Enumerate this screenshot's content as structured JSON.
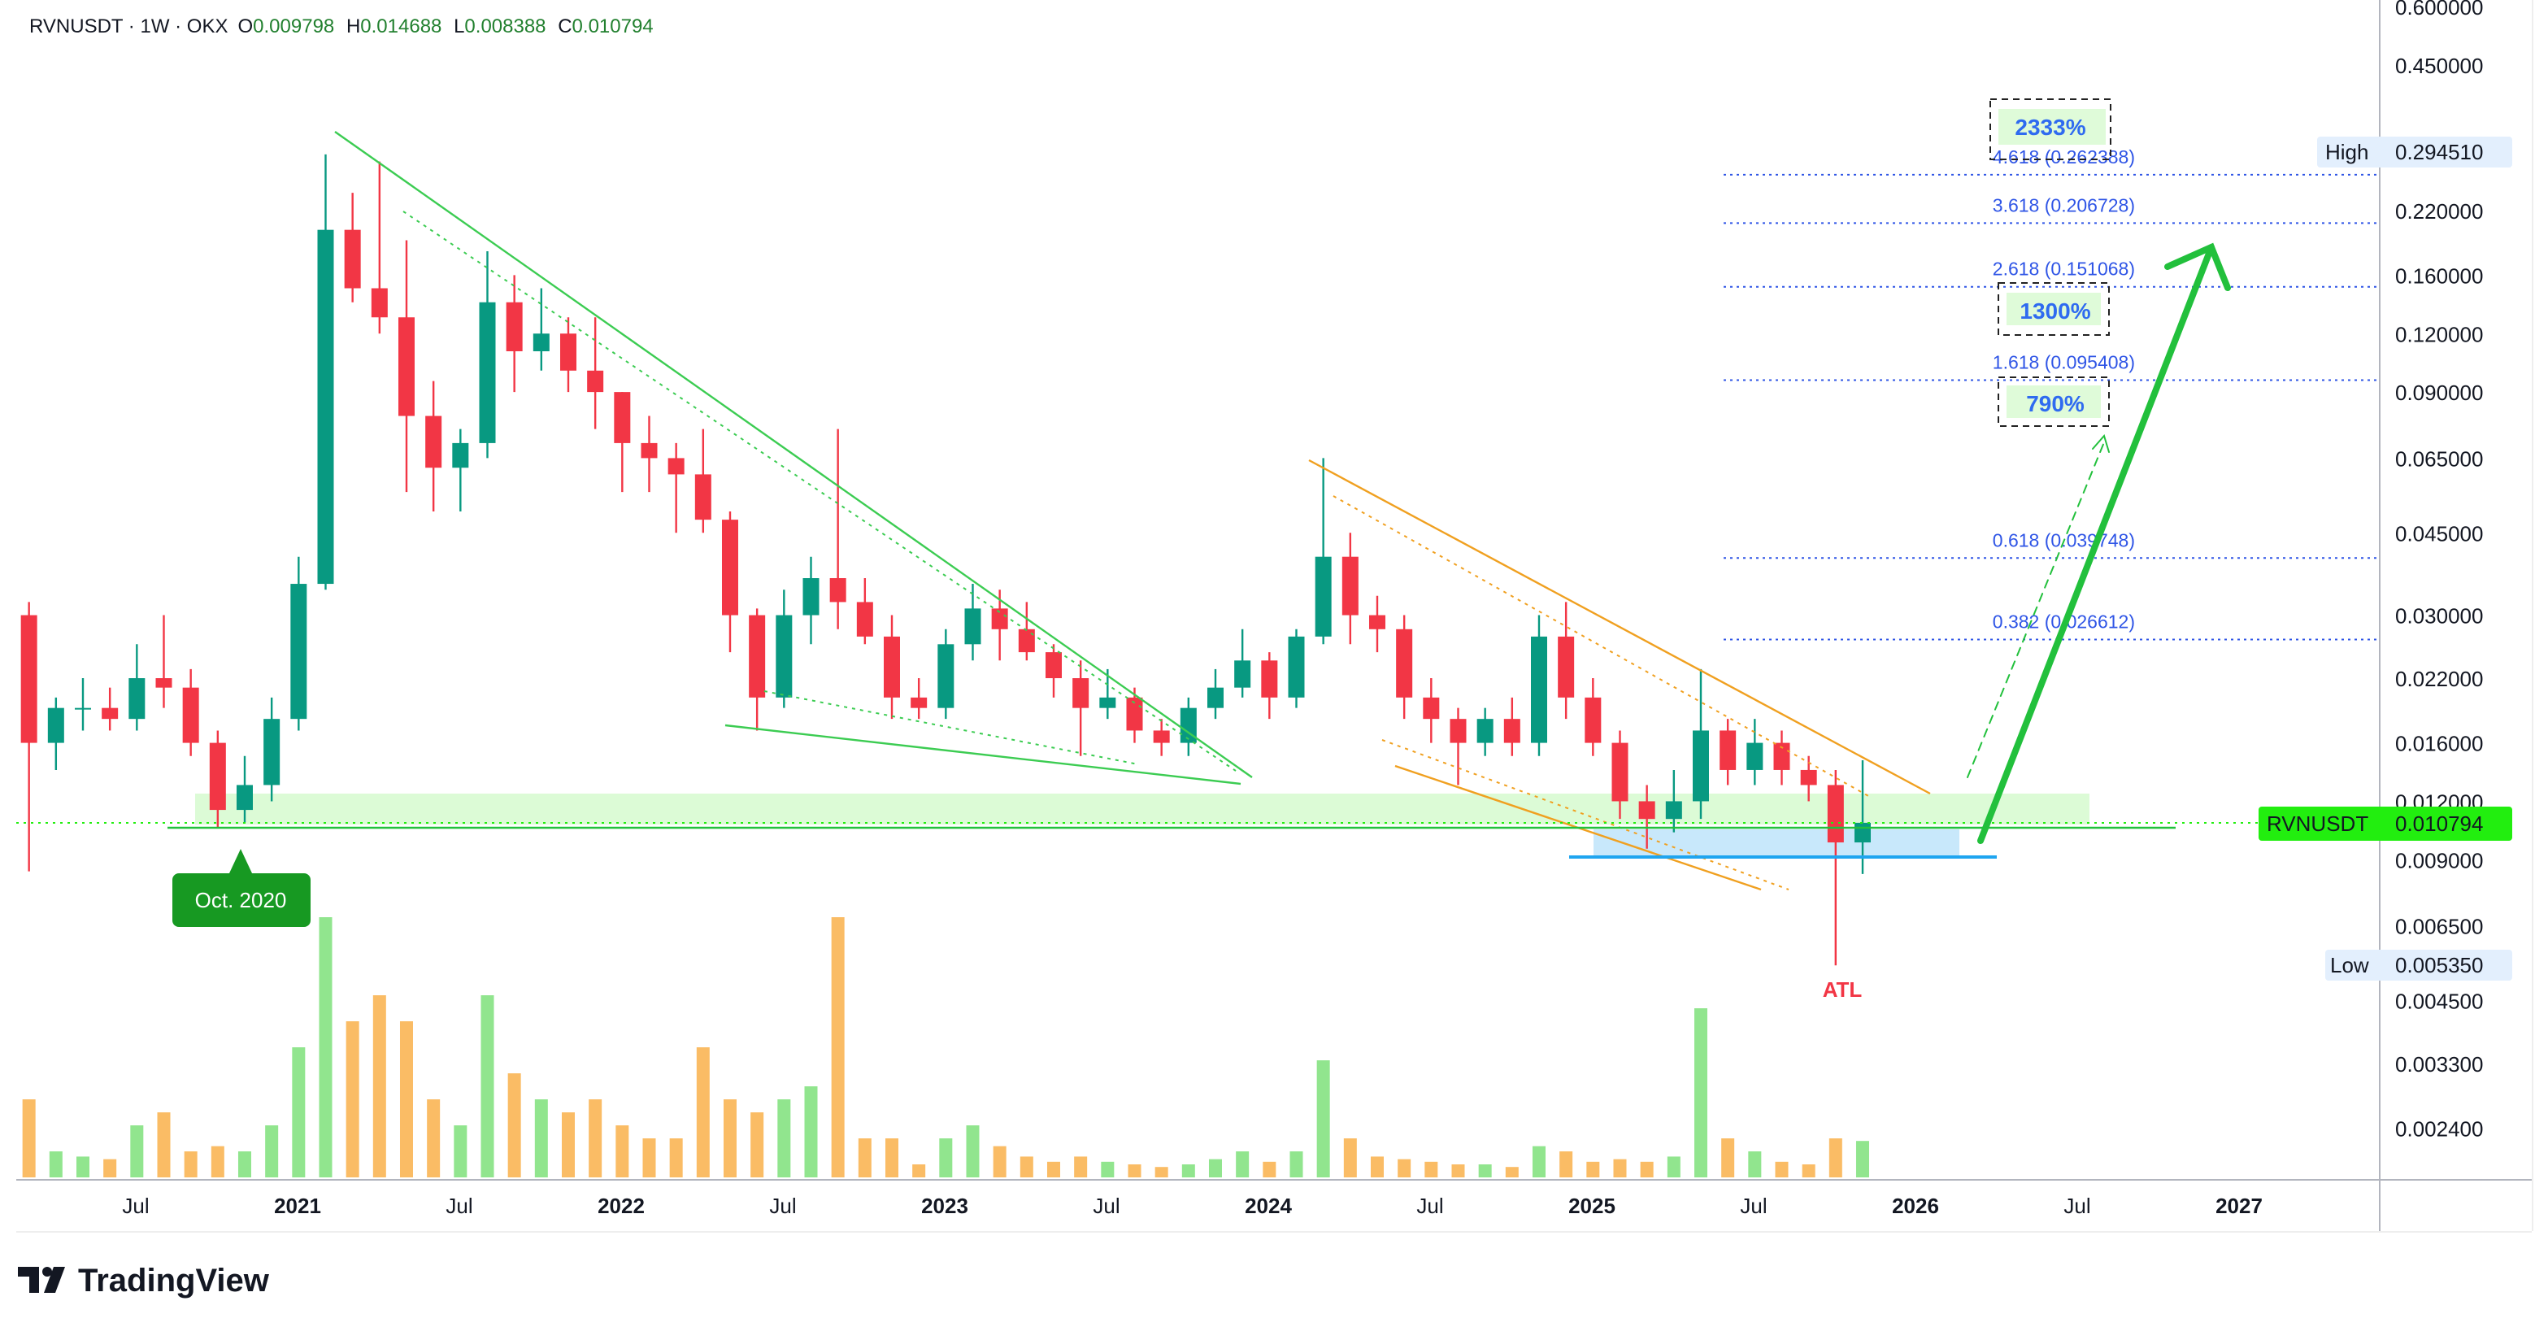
{
  "header": {
    "symbol": "RVNUSDT · 1W · OKX",
    "o_label": "O",
    "o": "0.009798",
    "h_label": "H",
    "h": "0.014688",
    "l_label": "L",
    "l": "0.008388",
    "c_label": "C",
    "c": "0.010794"
  },
  "colors": {
    "up": "#089981",
    "down": "#f23645",
    "vol_up": "#7ee07a",
    "vol_down": "#f9b04a",
    "fib": "#2f55e6",
    "arrow": "#22c03c",
    "badge": "#22ee0f"
  },
  "chart_data": {
    "type": "candlestick",
    "title": "RVNUSDT · 1W · OKX",
    "yscale": "log",
    "ylim": [
      0.0017,
      0.62
    ],
    "price_ticks": [
      "0.600000",
      "0.450000",
      "0.220000",
      "0.160000",
      "0.120000",
      "0.090000",
      "0.065000",
      "0.045000",
      "0.030000",
      "0.022000",
      "0.016000",
      "0.012000",
      "0.009000",
      "0.006500",
      "0.004500",
      "0.003300",
      "0.002400"
    ],
    "time_ticks": [
      {
        "label": "Jul",
        "t": 2020.5,
        "bold": false
      },
      {
        "label": "2021",
        "t": 2021,
        "bold": true
      },
      {
        "label": "Jul",
        "t": 2021.5,
        "bold": false
      },
      {
        "label": "2022",
        "t": 2022,
        "bold": true
      },
      {
        "label": "Jul",
        "t": 2022.5,
        "bold": false
      },
      {
        "label": "2023",
        "t": 2023,
        "bold": true
      },
      {
        "label": "Jul",
        "t": 2023.5,
        "bold": false
      },
      {
        "label": "2024",
        "t": 2024,
        "bold": true
      },
      {
        "label": "Jul",
        "t": 2024.5,
        "bold": false
      },
      {
        "label": "2025",
        "t": 2025,
        "bold": true
      },
      {
        "label": "Jul",
        "t": 2025.5,
        "bold": false
      },
      {
        "label": "2026",
        "t": 2026,
        "bold": true
      },
      {
        "label": "Jul",
        "t": 2026.5,
        "bold": false
      },
      {
        "label": "2027",
        "t": 2027,
        "bold": true
      }
    ],
    "candles_start": 2020.17,
    "candles": [
      [
        0.03,
        0.032,
        0.0085,
        0.016,
        0.3
      ],
      [
        0.016,
        0.02,
        0.014,
        0.019,
        0.1
      ],
      [
        0.019,
        0.022,
        0.017,
        0.019,
        0.08
      ],
      [
        0.019,
        0.021,
        0.017,
        0.018,
        0.07
      ],
      [
        0.018,
        0.026,
        0.017,
        0.022,
        0.2
      ],
      [
        0.022,
        0.03,
        0.019,
        0.021,
        0.25
      ],
      [
        0.021,
        0.023,
        0.015,
        0.016,
        0.1
      ],
      [
        0.016,
        0.017,
        0.0105,
        0.0115,
        0.12
      ],
      [
        0.0115,
        0.015,
        0.0108,
        0.013,
        0.1
      ],
      [
        0.013,
        0.02,
        0.012,
        0.018,
        0.2
      ],
      [
        0.018,
        0.04,
        0.017,
        0.035,
        0.5
      ],
      [
        0.035,
        0.29,
        0.034,
        0.2,
        1.0
      ],
      [
        0.2,
        0.24,
        0.14,
        0.15,
        0.6
      ],
      [
        0.15,
        0.28,
        0.12,
        0.13,
        0.7
      ],
      [
        0.13,
        0.19,
        0.055,
        0.08,
        0.6
      ],
      [
        0.08,
        0.095,
        0.05,
        0.062,
        0.3
      ],
      [
        0.062,
        0.075,
        0.05,
        0.07,
        0.2
      ],
      [
        0.07,
        0.18,
        0.065,
        0.14,
        0.7
      ],
      [
        0.14,
        0.16,
        0.09,
        0.11,
        0.4
      ],
      [
        0.11,
        0.15,
        0.1,
        0.12,
        0.3
      ],
      [
        0.12,
        0.13,
        0.09,
        0.1,
        0.25
      ],
      [
        0.1,
        0.13,
        0.075,
        0.09,
        0.3
      ],
      [
        0.09,
        0.09,
        0.055,
        0.07,
        0.2
      ],
      [
        0.07,
        0.08,
        0.055,
        0.065,
        0.15
      ],
      [
        0.065,
        0.07,
        0.045,
        0.06,
        0.15
      ],
      [
        0.06,
        0.075,
        0.045,
        0.048,
        0.5
      ],
      [
        0.048,
        0.05,
        0.025,
        0.03,
        0.3
      ],
      [
        0.03,
        0.031,
        0.017,
        0.02,
        0.25
      ],
      [
        0.02,
        0.034,
        0.019,
        0.03,
        0.3
      ],
      [
        0.03,
        0.04,
        0.026,
        0.036,
        0.35
      ],
      [
        0.036,
        0.075,
        0.028,
        0.032,
        1.0
      ],
      [
        0.032,
        0.036,
        0.026,
        0.027,
        0.15
      ],
      [
        0.027,
        0.03,
        0.018,
        0.02,
        0.15
      ],
      [
        0.02,
        0.022,
        0.018,
        0.019,
        0.05
      ],
      [
        0.019,
        0.028,
        0.018,
        0.026,
        0.15
      ],
      [
        0.026,
        0.035,
        0.024,
        0.031,
        0.2
      ],
      [
        0.031,
        0.034,
        0.024,
        0.028,
        0.12
      ],
      [
        0.028,
        0.032,
        0.024,
        0.025,
        0.08
      ],
      [
        0.025,
        0.026,
        0.02,
        0.022,
        0.06
      ],
      [
        0.022,
        0.024,
        0.015,
        0.019,
        0.08
      ],
      [
        0.019,
        0.023,
        0.018,
        0.02,
        0.06
      ],
      [
        0.02,
        0.021,
        0.016,
        0.017,
        0.05
      ],
      [
        0.017,
        0.018,
        0.015,
        0.016,
        0.04
      ],
      [
        0.016,
        0.02,
        0.015,
        0.019,
        0.05
      ],
      [
        0.019,
        0.023,
        0.018,
        0.021,
        0.07
      ],
      [
        0.021,
        0.028,
        0.02,
        0.024,
        0.1
      ],
      [
        0.024,
        0.025,
        0.018,
        0.02,
        0.06
      ],
      [
        0.02,
        0.028,
        0.019,
        0.027,
        0.1
      ],
      [
        0.027,
        0.065,
        0.026,
        0.04,
        0.45
      ],
      [
        0.04,
        0.045,
        0.026,
        0.03,
        0.15
      ],
      [
        0.03,
        0.033,
        0.025,
        0.028,
        0.08
      ],
      [
        0.028,
        0.03,
        0.018,
        0.02,
        0.07
      ],
      [
        0.02,
        0.022,
        0.016,
        0.018,
        0.06
      ],
      [
        0.018,
        0.019,
        0.013,
        0.016,
        0.05
      ],
      [
        0.016,
        0.019,
        0.015,
        0.018,
        0.05
      ],
      [
        0.018,
        0.02,
        0.015,
        0.016,
        0.04
      ],
      [
        0.016,
        0.03,
        0.015,
        0.027,
        0.12
      ],
      [
        0.027,
        0.032,
        0.018,
        0.02,
        0.1
      ],
      [
        0.02,
        0.022,
        0.015,
        0.016,
        0.06
      ],
      [
        0.016,
        0.017,
        0.011,
        0.012,
        0.07
      ],
      [
        0.012,
        0.013,
        0.0095,
        0.011,
        0.06
      ],
      [
        0.011,
        0.014,
        0.0103,
        0.012,
        0.08
      ],
      [
        0.012,
        0.023,
        0.011,
        0.017,
        0.65
      ],
      [
        0.017,
        0.018,
        0.013,
        0.014,
        0.15
      ],
      [
        0.014,
        0.018,
        0.013,
        0.016,
        0.1
      ],
      [
        0.016,
        0.017,
        0.013,
        0.014,
        0.06
      ],
      [
        0.014,
        0.015,
        0.012,
        0.013,
        0.05
      ],
      [
        0.013,
        0.014,
        0.00535,
        0.0098,
        0.15
      ],
      [
        0.0098,
        0.014688,
        0.008388,
        0.010794,
        0.14
      ]
    ],
    "fib_levels": [
      {
        "label": "4.618 (0.262388)",
        "price": 0.262388
      },
      {
        "label": "3.618 (0.206728)",
        "price": 0.206728
      },
      {
        "label": "2.618 (0.151068)",
        "price": 0.151068
      },
      {
        "label": "1.618 (0.095408)",
        "price": 0.095408
      },
      {
        "label": "0.618 (0.039748)",
        "price": 0.039748
      },
      {
        "label": "0.382 (0.026612)",
        "price": 0.026612
      }
    ],
    "targets": [
      "2333%",
      "1300%",
      "790%"
    ],
    "annotations": {
      "oct2020": "Oct. 2020",
      "atl": "ATL"
    }
  },
  "axis_badges": {
    "high_label": "High",
    "high_value": "0.294510",
    "last_label": "RVNUSDT",
    "last_value": "0.010794",
    "low_label": "Low",
    "low_value": "0.005350"
  },
  "footer": {
    "logo_text": "TradingView"
  }
}
